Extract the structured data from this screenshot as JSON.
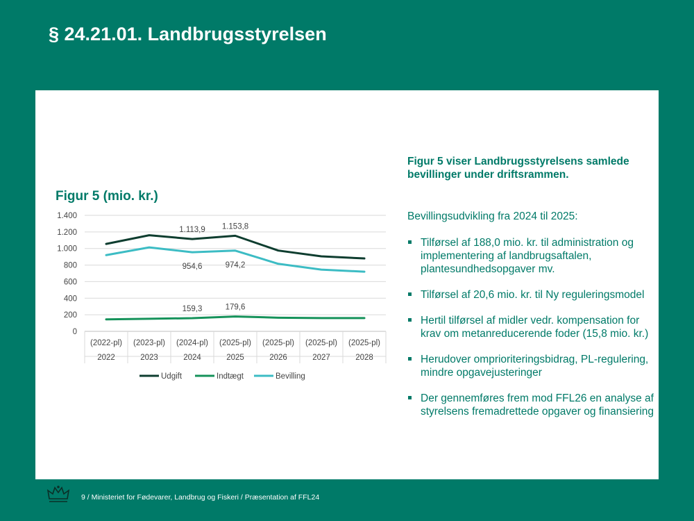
{
  "slide_title": "§ 24.21.01. Landbrugsstyrelsen",
  "figure_title": "Figur 5 (mio. kr.)",
  "right_panel": {
    "intro": "Figur 5 viser Landbrugsstyrelsens samlede bevillinger under driftsrammen.",
    "subheading": "Bevillingsudvikling fra 2024 til 2025:",
    "bullets": [
      "Tilførsel af 188,0 mio. kr. til administration og implementering af landbrugsaftalen, plantesundhedsopgaver mv.",
      "Tilførsel af 20,6 mio. kr. til Ny reguleringsmodel",
      "Hertil tilførsel af midler vedr. kompensation for krav om metanreducerende foder (15,8 mio. kr.)",
      "Herudover omprioriteringsbidrag, PL-regulering, mindre opgavejusteringer",
      "Der gennemføres frem mod FFL26 en analyse af styrelsens fremadrettede opgaver og finansiering"
    ]
  },
  "footer": "9 / Ministeriet for Fødevarer, Landbrug og Fiskeri / Præsentation af FFL24",
  "colors": {
    "background": "#007a68",
    "udgift": "#0e3d2f",
    "indtaegt": "#15925a",
    "bevilling": "#3cbcc4"
  },
  "chart_data": {
    "type": "line",
    "categories_top": [
      "(2022-pl)",
      "(2023-pl)",
      "(2024-pl)",
      "(2025-pl)",
      "(2025-pl)",
      "(2025-pl)",
      "(2025-pl)"
    ],
    "categories_bottom": [
      "2022",
      "2023",
      "2024",
      "2025",
      "2026",
      "2027",
      "2028"
    ],
    "ylim": [
      0,
      1400
    ],
    "yticks": [
      0,
      200,
      400,
      600,
      800,
      1000,
      1200,
      1400
    ],
    "ytick_labels": [
      "0",
      "200",
      "400",
      "600",
      "800",
      "1.000",
      "1.200",
      "1.400"
    ],
    "grid": true,
    "legend_position": "bottom",
    "series": [
      {
        "name": "Udgift",
        "color": "#0e3d2f",
        "values": [
          1055,
          1160,
          1113.9,
          1153.8,
          975,
          905,
          880
        ],
        "labels": [
          null,
          null,
          "1.113,9",
          "1.153,8",
          null,
          null,
          null
        ],
        "label_pos": "above"
      },
      {
        "name": "Indtægt",
        "color": "#15925a",
        "values": [
          145,
          152,
          159.3,
          179.6,
          165,
          160,
          160
        ],
        "labels": [
          null,
          null,
          "159,3",
          "179,6",
          null,
          null,
          null
        ],
        "label_pos": "above"
      },
      {
        "name": "Bevilling",
        "color": "#3cbcc4",
        "values": [
          920,
          1013,
          954.6,
          974.2,
          815,
          745,
          720
        ],
        "labels": [
          null,
          null,
          "954,6",
          "974,2",
          null,
          null,
          null
        ],
        "label_pos": "below"
      }
    ]
  }
}
